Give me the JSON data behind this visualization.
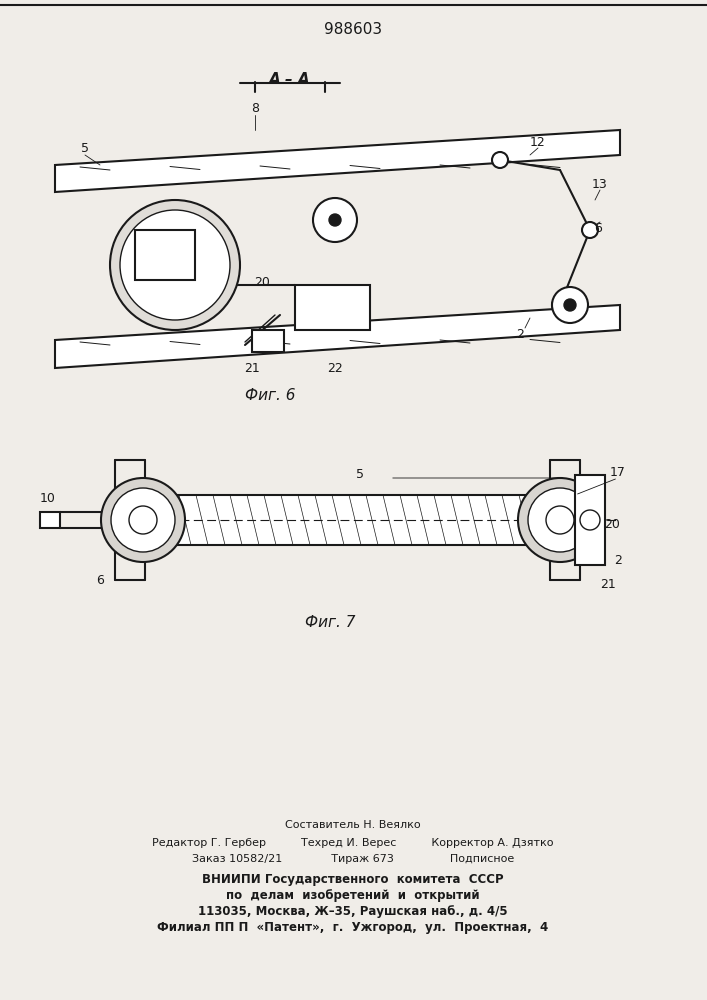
{
  "title": "988603",
  "bg_color": "#f0ede8",
  "footer_lines": [
    "Составитель Н. Веялко",
    "Редактор Г. Гербер          Техред И. Верес          Корректор А. Дзятко",
    "Заказ 10582/21              Тираж 673                Подписное",
    "ВНИИПИ Государственного  комитета  СССР",
    "по  делам  изобретений  и  открытий",
    "113035, Москва, Ж–35, Раушская наб., д. 4/5",
    "Филиал ПП П  «Патент»,  г.  Ужгород,  ул.  Проектная,  4"
  ],
  "fig6_label": "Фиг. 6",
  "fig7_label": "Фиг. 7",
  "section_label": "А – А",
  "line_color": "#1a1a1a",
  "hatch_color": "#1a1a1a"
}
